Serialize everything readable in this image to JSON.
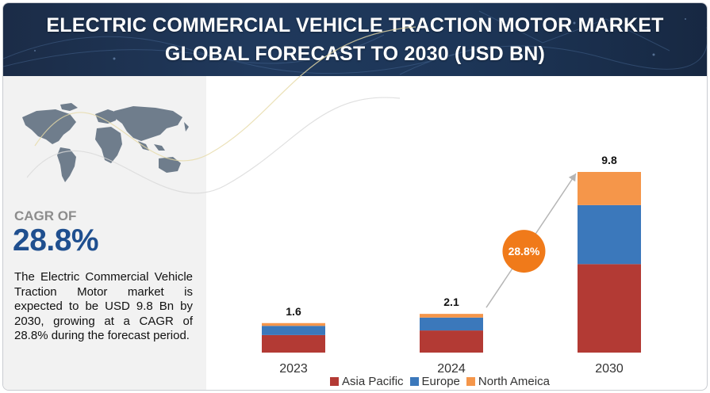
{
  "header": {
    "title_line1": "ELECTRIC COMMERCIAL VEHICLE TRACTION MOTOR MARKET",
    "title_line2": "GLOBAL FORECAST TO 2030 (USD BN)"
  },
  "sidebar": {
    "cagr_label": "CAGR OF",
    "cagr_value": "28.8%",
    "description": "The Electric Commercial Vehicle Traction Motor market is expected to be USD 9.8 Bn by 2030, growing at a CAGR of 28.8% during the forecast period."
  },
  "colors": {
    "asia_pacific": "#b33a34",
    "europe": "#3b78bb",
    "north_america": "#f5964a",
    "cagr_bubble": "#f07a1a",
    "cagr_text": "#1f4f8f"
  },
  "chart_data": {
    "type": "bar",
    "stacked": true,
    "categories": [
      "2023",
      "2024",
      "2030"
    ],
    "series": [
      {
        "name": "Asia Pacific",
        "values": [
          0.95,
          1.2,
          4.8
        ]
      },
      {
        "name": "Europe",
        "values": [
          0.5,
          0.7,
          3.2
        ]
      },
      {
        "name": "North Ameica",
        "values": [
          0.15,
          0.2,
          1.8
        ]
      }
    ],
    "totals": [
      "1.6",
      "2.1",
      "9.8"
    ],
    "ylim": [
      0,
      11
    ],
    "annotation": "28.8%",
    "legend_position": "bottom"
  }
}
